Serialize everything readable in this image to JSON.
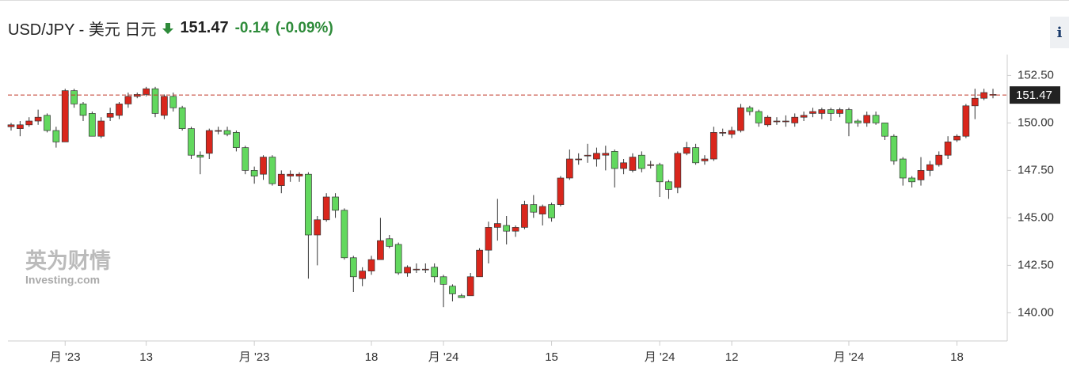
{
  "chart_data": {
    "type": "candlestick",
    "title": "USD/JPY - 美元 日元",
    "last_price": 151.47,
    "change": -0.14,
    "change_pct": {
      "value": -0.09,
      "label": "(-0.09%)"
    },
    "watermark": [
      "英为财情",
      "Investing.com"
    ],
    "up_color": "#d9261c",
    "down_color": "#62d85e",
    "last_price_color": "#c0392b",
    "ylim": [
      138.6,
      153.6
    ],
    "yticks": [
      {
        "value": 140,
        "label": "140.00"
      },
      {
        "value": 142.5,
        "label": "142.50"
      },
      {
        "value": 145,
        "label": "145.00"
      },
      {
        "value": 147.5,
        "label": "147.50"
      },
      {
        "value": 150,
        "label": "150.00"
      },
      {
        "value": 152.5,
        "label": "152.50"
      }
    ],
    "grid": false,
    "categories": [
      null,
      null,
      null,
      null,
      null,
      null,
      "月 '23",
      null,
      null,
      null,
      null,
      null,
      null,
      null,
      null,
      "13",
      null,
      null,
      null,
      null,
      null,
      null,
      null,
      null,
      null,
      null,
      null,
      "月 '23",
      null,
      null,
      null,
      null,
      null,
      null,
      null,
      null,
      null,
      null,
      null,
      null,
      "18",
      null,
      null,
      null,
      null,
      null,
      null,
      null,
      "月 '24",
      null,
      null,
      null,
      null,
      null,
      null,
      null,
      null,
      null,
      null,
      null,
      "15",
      null,
      null,
      null,
      null,
      null,
      null,
      null,
      null,
      null,
      null,
      null,
      "月 '24",
      null,
      null,
      null,
      null,
      null,
      null,
      null,
      "12",
      null,
      null,
      null,
      null,
      null,
      null,
      null,
      null,
      null,
      null,
      null,
      null,
      "月 '24",
      null,
      null,
      null,
      null,
      null,
      null,
      null,
      null,
      null,
      null,
      null,
      "18",
      null,
      null,
      null,
      null
    ],
    "open": [
      149.8,
      149.7,
      149.9,
      150.1,
      150.4,
      149.6,
      149.0,
      151.7,
      151.0,
      150.5,
      149.3,
      150.3,
      150.4,
      151.0,
      151.4,
      151.5,
      151.8,
      150.4,
      151.4,
      150.8,
      149.7,
      148.3,
      148.4,
      149.6,
      149.6,
      149.5,
      148.7,
      147.5,
      147.3,
      148.2,
      146.7,
      147.2,
      147.2,
      147.3,
      144.1,
      144.9,
      146.1,
      145.4,
      142.9,
      141.8,
      142.2,
      142.8,
      143.9,
      143.6,
      142.1,
      142.3,
      142.3,
      142.4,
      141.9,
      141.4,
      140.9,
      140.9,
      141.9,
      143.3,
      144.5,
      144.6,
      144.3,
      144.5,
      145.7,
      145.2,
      145.7,
      145.7,
      147.1,
      148.1,
      148.3,
      148.1,
      148.3,
      148.5,
      147.6,
      147.5,
      148.3,
      147.8,
      147.8,
      146.9,
      146.6,
      148.4,
      148.7,
      148.0,
      148.1,
      149.5,
      149.4,
      149.6,
      150.8,
      150.6,
      149.9,
      150.1,
      150.1,
      150.0,
      150.3,
      150.5,
      150.5,
      150.7,
      150.5,
      150.7,
      150.1,
      150.0,
      150.4,
      150.0,
      149.3,
      148.1,
      147.1,
      147.0,
      147.5,
      147.8,
      148.3,
      149.1,
      149.3,
      150.9,
      151.3,
      151.5
    ],
    "high": [
      150.0,
      150.1,
      150.3,
      150.7,
      150.5,
      149.8,
      151.8,
      151.8,
      151.1,
      150.6,
      150.3,
      150.8,
      151.1,
      151.6,
      151.6,
      151.9,
      151.9,
      151.5,
      151.6,
      150.9,
      149.8,
      148.5,
      149.7,
      149.8,
      149.8,
      149.6,
      148.8,
      147.7,
      148.3,
      148.3,
      147.5,
      147.5,
      147.4,
      147.4,
      145.1,
      146.3,
      146.3,
      145.5,
      143.0,
      142.4,
      143.0,
      145.0,
      144.1,
      143.7,
      142.5,
      142.6,
      142.6,
      142.6,
      142.0,
      141.5,
      141.0,
      142.1,
      143.4,
      144.8,
      146.0,
      145.1,
      144.6,
      145.9,
      146.2,
      145.7,
      145.8,
      147.2,
      148.6,
      148.4,
      148.9,
      148.7,
      148.8,
      148.6,
      148.1,
      148.4,
      148.5,
      148.0,
      147.9,
      147.0,
      148.5,
      149.0,
      148.9,
      148.3,
      149.8,
      149.7,
      149.8,
      151.0,
      150.9,
      150.7,
      150.4,
      150.3,
      150.4,
      150.5,
      150.6,
      150.8,
      150.8,
      150.8,
      150.8,
      150.8,
      150.2,
      150.6,
      150.6,
      150.0,
      149.4,
      148.2,
      147.2,
      148.2,
      148.0,
      148.5,
      149.3,
      149.4,
      151.0,
      151.8,
      151.8,
      151.8
    ],
    "low": [
      149.6,
      149.3,
      149.8,
      149.9,
      149.5,
      148.7,
      149.0,
      150.8,
      150.1,
      149.3,
      149.2,
      150.1,
      150.2,
      150.8,
      151.3,
      151.4,
      150.3,
      150.2,
      150.6,
      149.6,
      148.1,
      147.3,
      148.1,
      149.4,
      149.3,
      148.5,
      147.3,
      146.8,
      147.0,
      146.7,
      146.3,
      146.9,
      146.9,
      141.8,
      142.5,
      144.8,
      145.0,
      142.8,
      141.1,
      141.4,
      142.0,
      142.8,
      143.4,
      142.0,
      141.9,
      142.1,
      142.1,
      141.6,
      140.3,
      140.6,
      140.8,
      140.9,
      141.9,
      142.6,
      143.8,
      143.6,
      144.0,
      144.4,
      145.0,
      144.6,
      144.8,
      145.6,
      147.0,
      147.8,
      147.9,
      147.7,
      147.5,
      146.6,
      147.3,
      147.4,
      147.4,
      147.6,
      146.1,
      146.0,
      146.3,
      148.3,
      147.8,
      147.8,
      148.0,
      149.3,
      149.2,
      149.5,
      150.4,
      149.8,
      149.8,
      149.9,
      149.8,
      149.8,
      150.1,
      150.3,
      150.2,
      150.1,
      150.3,
      149.3,
      149.8,
      149.8,
      149.9,
      149.1,
      147.8,
      146.7,
      146.6,
      146.7,
      147.2,
      147.7,
      148.1,
      149.0,
      149.2,
      150.2,
      151.2,
      151.3
    ],
    "close": [
      149.9,
      149.9,
      150.1,
      150.3,
      149.6,
      149.0,
      151.7,
      151.0,
      150.4,
      149.3,
      150.1,
      150.5,
      151.0,
      151.4,
      151.5,
      151.8,
      150.5,
      151.4,
      150.8,
      149.7,
      148.3,
      148.2,
      149.6,
      149.6,
      149.4,
      148.7,
      147.5,
      147.2,
      148.2,
      146.8,
      147.3,
      147.3,
      147.3,
      144.1,
      144.9,
      146.1,
      145.4,
      142.9,
      141.9,
      142.2,
      142.8,
      143.8,
      143.5,
      142.1,
      142.4,
      142.3,
      142.3,
      141.9,
      141.5,
      141.0,
      140.8,
      141.9,
      143.3,
      144.5,
      144.7,
      144.3,
      144.5,
      145.7,
      145.3,
      145.6,
      145.0,
      147.1,
      148.1,
      148.1,
      148.3,
      148.4,
      148.4,
      147.6,
      147.9,
      148.2,
      147.6,
      147.8,
      146.9,
      146.5,
      148.4,
      148.7,
      147.9,
      148.1,
      149.5,
      149.5,
      149.6,
      150.8,
      150.6,
      150.0,
      150.3,
      150.1,
      150.1,
      150.3,
      150.4,
      150.6,
      150.7,
      150.5,
      150.7,
      150.0,
      150.0,
      150.4,
      150.0,
      149.3,
      148.0,
      147.1,
      146.9,
      147.5,
      147.8,
      148.3,
      149.0,
      149.3,
      150.9,
      151.3,
      151.6,
      151.5
    ]
  }
}
